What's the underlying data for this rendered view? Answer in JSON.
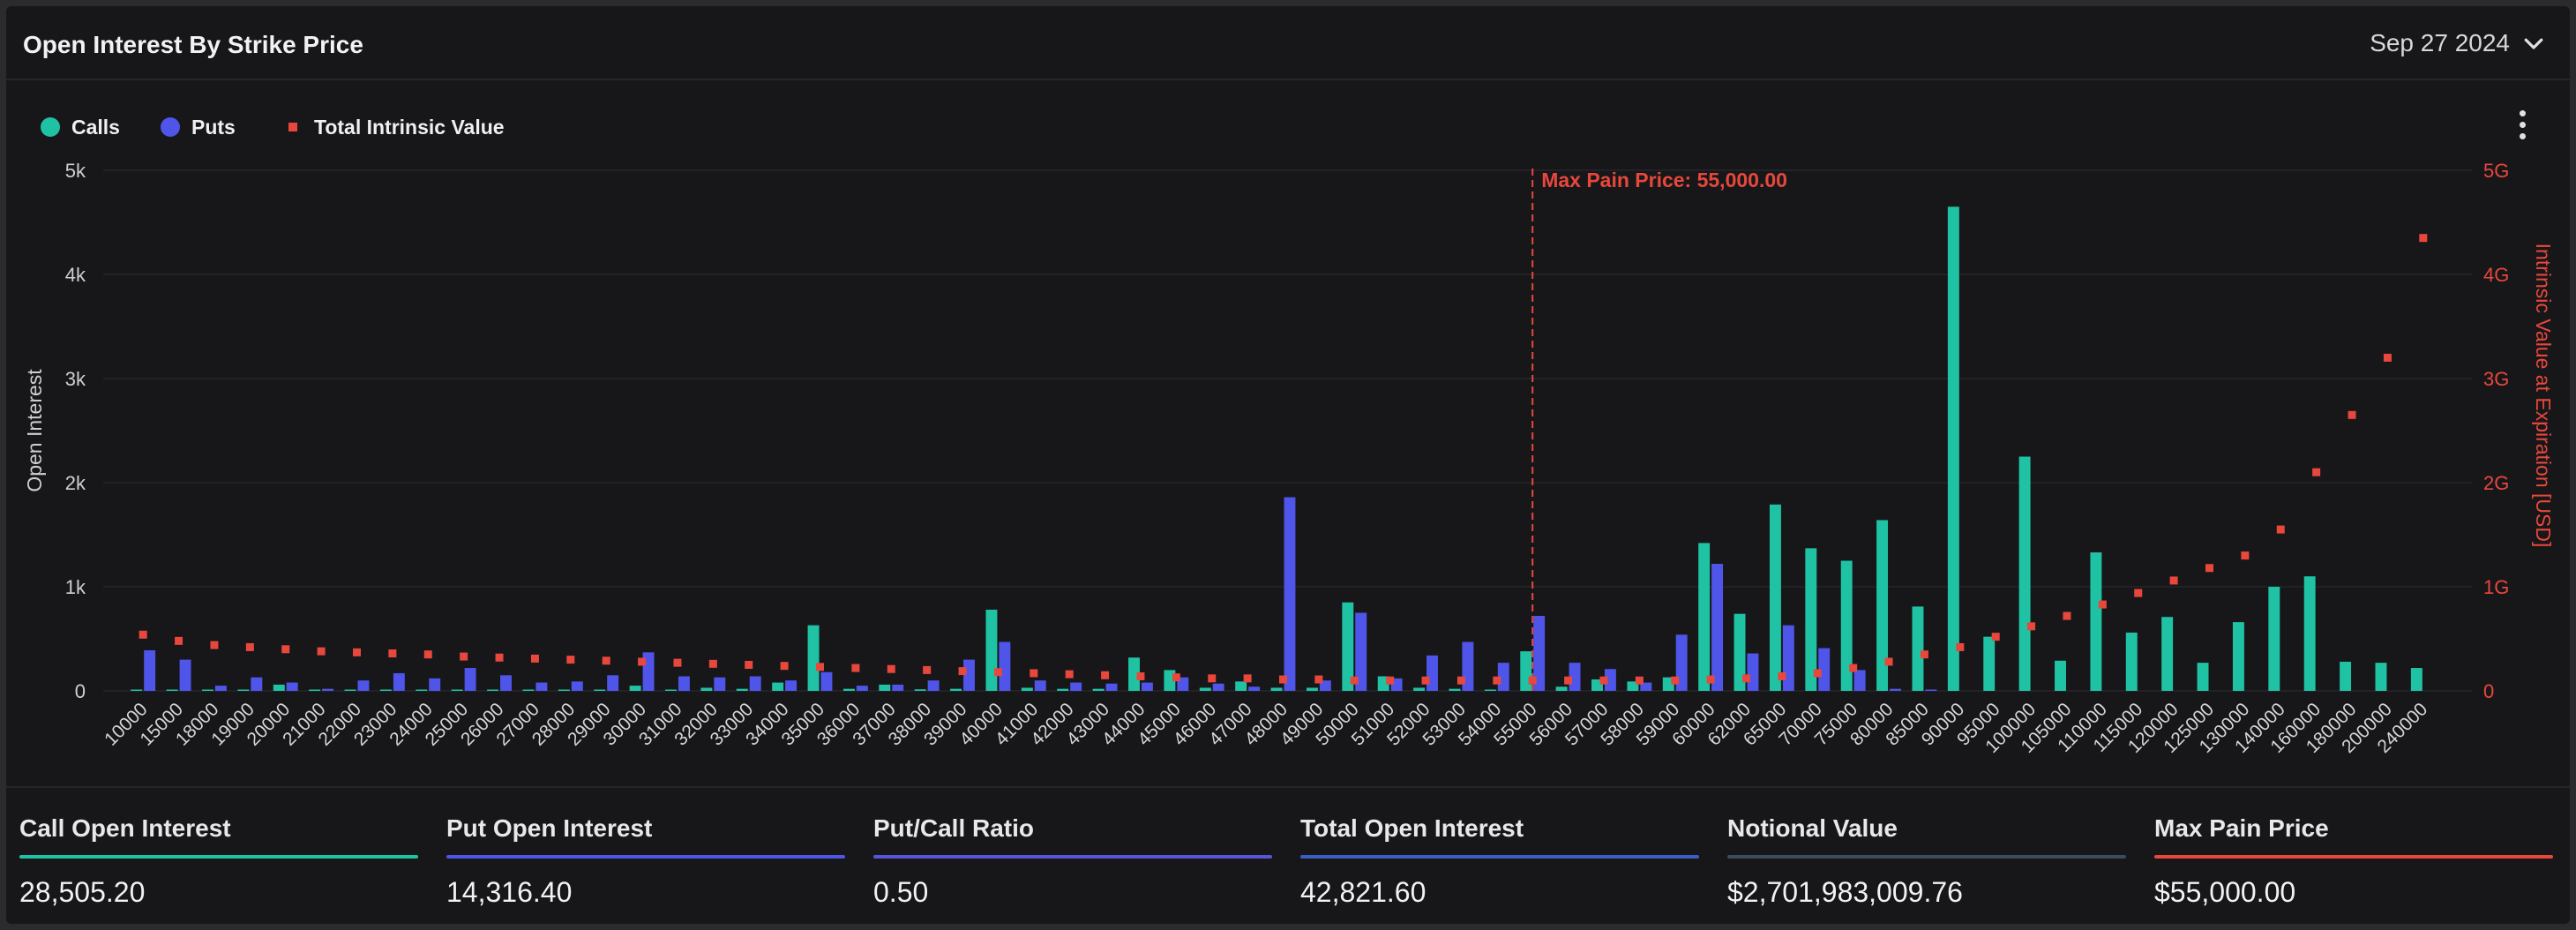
{
  "header": {
    "title": "Open Interest By Strike Price",
    "date": "Sep 27 2024"
  },
  "colors": {
    "calls": "#1fc3a4",
    "puts": "#4f55e8",
    "intrinsic": "#e8473c",
    "total_oi_line": "#3a5fc4",
    "notional_line": "#3c4c5c"
  },
  "chart_data": {
    "type": "bar",
    "legend": [
      "Calls",
      "Puts",
      "Total Intrinsic Value"
    ],
    "legend_position": "top-left",
    "ylabel": "Open Interest",
    "y2label": "Intrinsic Value at Expiration [USD]",
    "ylim": [
      0,
      5000
    ],
    "y_ticks": [
      "0",
      "1k",
      "2k",
      "3k",
      "4k",
      "5k"
    ],
    "y2lim": [
      0,
      5
    ],
    "y2_ticks": [
      "0",
      "1G",
      "2G",
      "3G",
      "4G",
      "5G"
    ],
    "annotation": "Max Pain Price: 55,000.00",
    "annotation_x": "55000",
    "categories": [
      "10000",
      "15000",
      "18000",
      "19000",
      "20000",
      "21000",
      "22000",
      "23000",
      "24000",
      "25000",
      "26000",
      "27000",
      "28000",
      "29000",
      "30000",
      "31000",
      "32000",
      "33000",
      "34000",
      "35000",
      "36000",
      "37000",
      "38000",
      "39000",
      "40000",
      "41000",
      "42000",
      "43000",
      "44000",
      "45000",
      "46000",
      "47000",
      "48000",
      "49000",
      "50000",
      "51000",
      "52000",
      "53000",
      "54000",
      "55000",
      "56000",
      "57000",
      "58000",
      "59000",
      "60000",
      "62000",
      "65000",
      "70000",
      "75000",
      "80000",
      "85000",
      "90000",
      "95000",
      "100000",
      "105000",
      "110000",
      "115000",
      "120000",
      "125000",
      "130000",
      "140000",
      "160000",
      "180000",
      "200000",
      "240000"
    ],
    "series": [
      {
        "name": "Calls",
        "axis": "left",
        "values": [
          5,
          5,
          5,
          5,
          60,
          5,
          5,
          5,
          5,
          10,
          5,
          5,
          5,
          5,
          50,
          5,
          30,
          20,
          80,
          630,
          20,
          60,
          15,
          20,
          780,
          30,
          20,
          20,
          320,
          200,
          30,
          90,
          30,
          30,
          850,
          140,
          30,
          20,
          10,
          380,
          40,
          110,
          90,
          130,
          1420,
          740,
          1790,
          1370,
          1250,
          1640,
          810,
          4650,
          520,
          2250,
          290,
          1330,
          560,
          710,
          270,
          660,
          1000,
          1100,
          280,
          270,
          220
        ]
      },
      {
        "name": "Puts",
        "axis": "left",
        "values": [
          390,
          300,
          50,
          130,
          80,
          20,
          100,
          170,
          120,
          220,
          150,
          80,
          90,
          150,
          370,
          140,
          130,
          140,
          100,
          180,
          50,
          60,
          100,
          300,
          470,
          100,
          80,
          70,
          80,
          130,
          70,
          40,
          1860,
          100,
          750,
          120,
          340,
          470,
          270,
          720,
          270,
          210,
          80,
          540,
          1220,
          360,
          630,
          410,
          200,
          20,
          10,
          0,
          0,
          0,
          0,
          0,
          0,
          0,
          0,
          0,
          0,
          0,
          0,
          0,
          0
        ]
      },
      {
        "name": "Total Intrinsic Value",
        "axis": "right",
        "values": [
          0.54,
          0.48,
          0.44,
          0.42,
          0.4,
          0.38,
          0.37,
          0.36,
          0.35,
          0.33,
          0.32,
          0.31,
          0.3,
          0.29,
          0.28,
          0.27,
          0.26,
          0.25,
          0.24,
          0.23,
          0.22,
          0.21,
          0.2,
          0.19,
          0.18,
          0.17,
          0.16,
          0.15,
          0.14,
          0.13,
          0.12,
          0.12,
          0.11,
          0.11,
          0.1,
          0.1,
          0.1,
          0.1,
          0.1,
          0.1,
          0.1,
          0.1,
          0.1,
          0.1,
          0.11,
          0.12,
          0.14,
          0.17,
          0.22,
          0.28,
          0.35,
          0.42,
          0.52,
          0.62,
          0.72,
          0.83,
          0.94,
          1.06,
          1.18,
          1.3,
          1.55,
          2.1,
          2.65,
          3.2,
          4.35
        ]
      }
    ]
  },
  "stats": [
    {
      "label": "Call Open Interest",
      "value": "28,505.20",
      "color": "#1fc3a4"
    },
    {
      "label": "Put Open Interest",
      "value": "14,316.40",
      "color": "#4f55e8"
    },
    {
      "label": "Put/Call Ratio",
      "value": "0.50",
      "color": "#5a55d8"
    },
    {
      "label": "Total Open Interest",
      "value": "42,821.60",
      "color": "#3a5fc4"
    },
    {
      "label": "Notional Value",
      "value": "$2,701,983,009.76",
      "color": "#3c4c5c"
    },
    {
      "label": "Max Pain Price",
      "value": "$55,000.00",
      "color": "#e8473c"
    }
  ]
}
